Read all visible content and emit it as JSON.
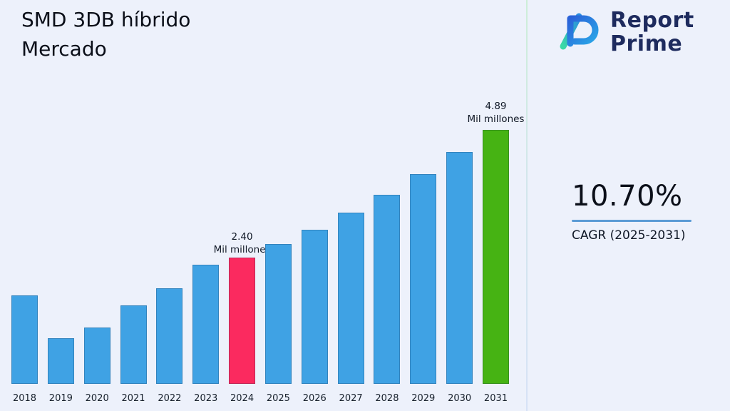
{
  "title": "SMD 3DB híbrido\nMercado",
  "logo": {
    "line1": "Report",
    "line2": "Prime",
    "icon": "report-prime-logo-icon"
  },
  "cagr": {
    "value": "10.70%",
    "label": "CAGR (2025-2031)",
    "underline_color": "#5b9bd5"
  },
  "chart_data": {
    "type": "bar",
    "title": "SMD 3DB híbrido Mercado",
    "categories": [
      "2018",
      "2019",
      "2020",
      "2021",
      "2022",
      "2023",
      "2024",
      "2025",
      "2026",
      "2027",
      "2028",
      "2029",
      "2030",
      "2031"
    ],
    "values": [
      1.68,
      0.87,
      1.07,
      1.5,
      1.82,
      2.27,
      2.4,
      2.66,
      2.94,
      3.26,
      3.6,
      3.99,
      4.42,
      4.89
    ],
    "unit": "Mil millones",
    "ylim": [
      0,
      4.89
    ],
    "grid": false,
    "legend": "none",
    "colors": {
      "default": "#3fa2e4",
      "2024": "#fb2a5f",
      "2031": "#46b313"
    },
    "annotations": [
      {
        "category": "2024",
        "value_label": "2.40",
        "unit_label": "Mil millones"
      },
      {
        "category": "2031",
        "value_label": "4.89",
        "unit_label": "Mil millones"
      }
    ]
  }
}
